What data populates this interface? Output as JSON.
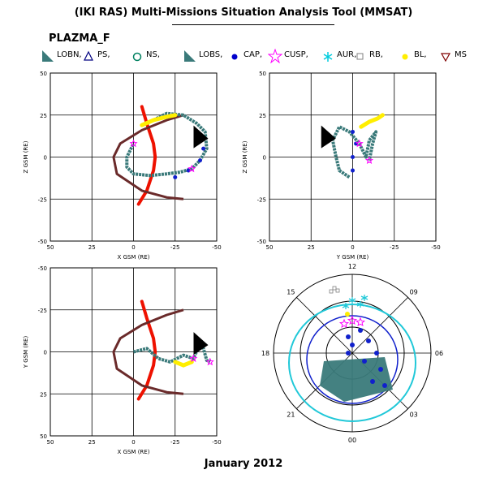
{
  "title": "(IKI RAS) Multi-Missions Situation Analysis Tool (MMSAT)",
  "subtitle": "PLAZMA_F",
  "footer": "January 2012",
  "legend": [
    {
      "label": "LOBN,",
      "marker": "tri-big",
      "color": "#3a7a7a"
    },
    {
      "label": "PS,",
      "marker": "triangle",
      "color": "#000080"
    },
    {
      "label": "NS,",
      "marker": "circle",
      "color": "#008060"
    },
    {
      "label": "LOBS,",
      "marker": "tri-big",
      "color": "#3a7a7a"
    },
    {
      "label": "CAP,",
      "marker": "dot",
      "color": "#0000cc"
    },
    {
      "label": "CUSP,",
      "marker": "star",
      "color": "#ff00ff"
    },
    {
      "label": "AUR,",
      "marker": "asterisk",
      "color": "#00ccdd"
    },
    {
      "label": "RB,",
      "marker": "square",
      "color": "#808080"
    },
    {
      "label": "BL,",
      "marker": "dot",
      "color": "#ffee00"
    },
    {
      "label": "MS",
      "marker": "triangle-down",
      "color": "#800000"
    }
  ],
  "chart_data": [
    {
      "type": "scatter",
      "name": "xz",
      "xlabel": "X GSM (RE)",
      "ylabel": "Z GSM (RE)",
      "xlim": [
        50,
        -50
      ],
      "ylim": [
        -50,
        50
      ],
      "xticks": [
        "50",
        "25",
        "0",
        "-25",
        "-50"
      ],
      "yticks": [
        "-50",
        "-25",
        "0",
        "25",
        "50"
      ],
      "grid": true,
      "bow_shock": [
        [
          -5,
          30
        ],
        [
          -8,
          20
        ],
        [
          -12,
          8
        ],
        [
          -13,
          0
        ],
        [
          -12,
          -8
        ],
        [
          -8,
          -20
        ],
        [
          -3,
          -28
        ]
      ],
      "magnetopause": [
        [
          -30,
          25
        ],
        [
          -20,
          22
        ],
        [
          -5,
          16
        ],
        [
          8,
          8
        ],
        [
          12,
          0
        ],
        [
          10,
          -10
        ],
        [
          -5,
          -20
        ],
        [
          -20,
          -24
        ],
        [
          -30,
          -25
        ]
      ],
      "orbit_bl": [
        [
          -5,
          19
        ],
        [
          -12,
          22
        ],
        [
          -20,
          24
        ],
        [
          -25,
          25
        ]
      ],
      "orbit_teal": [
        [
          -12,
          22
        ],
        [
          -20,
          26
        ],
        [
          -30,
          25
        ],
        [
          -38,
          20
        ],
        [
          -43,
          15
        ],
        [
          -44,
          5
        ],
        [
          -40,
          -2
        ],
        [
          -35,
          -7
        ],
        [
          -28,
          -9
        ],
        [
          -20,
          -10
        ],
        [
          -10,
          -11
        ],
        [
          0,
          -10
        ],
        [
          4,
          -6
        ],
        [
          4,
          0
        ],
        [
          0,
          8
        ]
      ],
      "orbit_cap": [
        [
          -25,
          -12
        ],
        [
          -33,
          -8
        ],
        [
          -40,
          -2
        ],
        [
          -42,
          5
        ]
      ]
    },
    {
      "type": "scatter",
      "name": "yz",
      "xlabel": "Y GSM (RE)",
      "ylabel": "Z GSM (RE)",
      "xlim": [
        50,
        -50
      ],
      "ylim": [
        -50,
        50
      ],
      "xticks": [
        "50",
        "25",
        "0",
        "-25",
        "-50"
      ],
      "yticks": [
        "-50",
        "-25",
        "0",
        "25",
        "50"
      ],
      "grid": true,
      "orbit_teal": [
        [
          2,
          -12
        ],
        [
          8,
          -8
        ],
        [
          10,
          0
        ],
        [
          12,
          10
        ],
        [
          8,
          18
        ],
        [
          2,
          15
        ],
        [
          -4,
          8
        ],
        [
          -8,
          0
        ],
        [
          -10,
          10
        ],
        [
          -14,
          15
        ],
        [
          -12,
          8
        ],
        [
          -10,
          -2
        ]
      ],
      "orbit_bl": [
        [
          -5,
          18
        ],
        [
          -10,
          21
        ],
        [
          -15,
          23
        ],
        [
          -18,
          25
        ]
      ],
      "orbit_cap": [
        [
          0,
          -8
        ],
        [
          0,
          0
        ],
        [
          -2,
          8
        ],
        [
          0,
          15
        ]
      ]
    },
    {
      "type": "scatter",
      "name": "xy",
      "xlabel": "X GSM (RE)",
      "ylabel": "Y GSM (RE)",
      "xlim": [
        50,
        -50
      ],
      "ylim": [
        50,
        -50
      ],
      "xticks": [
        "50",
        "25",
        "0",
        "-25",
        "-50"
      ],
      "yticks": [
        "-50",
        "-25",
        "0",
        "25",
        "50"
      ],
      "grid": true,
      "bow_shock": [
        [
          -5,
          -30
        ],
        [
          -8,
          -20
        ],
        [
          -12,
          -8
        ],
        [
          -13,
          0
        ],
        [
          -12,
          8
        ],
        [
          -8,
          20
        ],
        [
          -3,
          28
        ]
      ],
      "magnetopause": [
        [
          -30,
          -25
        ],
        [
          -20,
          -22
        ],
        [
          -5,
          -16
        ],
        [
          8,
          -8
        ],
        [
          12,
          0
        ],
        [
          10,
          10
        ],
        [
          -5,
          20
        ],
        [
          -20,
          24
        ],
        [
          -30,
          25
        ]
      ],
      "orbit_teal": [
        [
          0,
          0
        ],
        [
          -8,
          -2
        ],
        [
          -15,
          4
        ],
        [
          -22,
          6
        ],
        [
          -30,
          2
        ],
        [
          -36,
          4
        ],
        [
          -40,
          -5
        ],
        [
          -42,
          -2
        ],
        [
          -44,
          5
        ],
        [
          -46,
          6
        ]
      ],
      "orbit_bl": [
        [
          -25,
          6
        ],
        [
          -30,
          8
        ],
        [
          -35,
          6
        ]
      ]
    },
    {
      "type": "polar",
      "name": "mlt",
      "labels": [
        "12",
        "15",
        "18",
        "21",
        "00",
        "03",
        "06",
        "09"
      ],
      "rings": 3
    }
  ]
}
